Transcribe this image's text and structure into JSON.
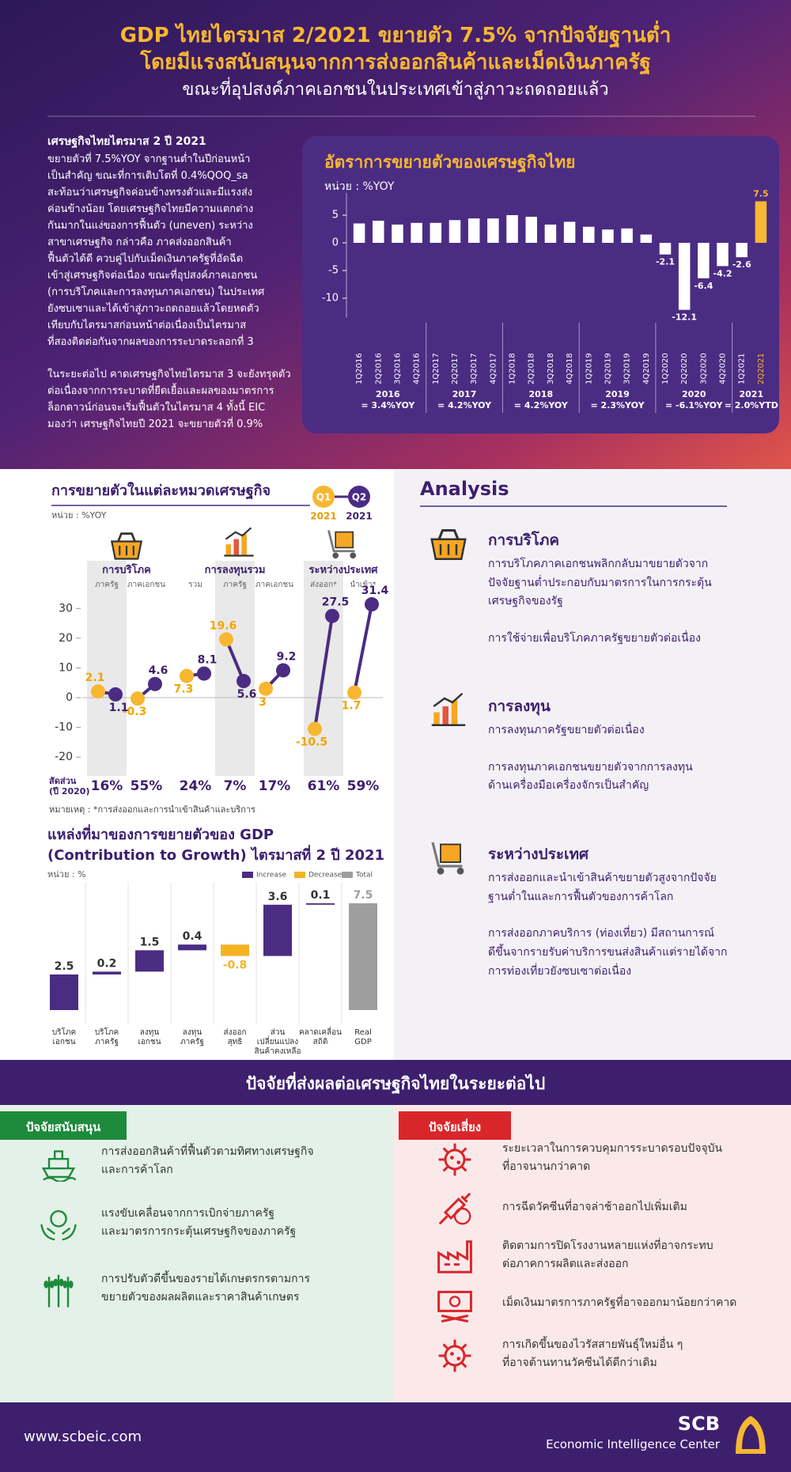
{
  "header": {
    "title": [
      "GDP ไทยไตรมาส 2/2021 ขยายตัว 7.5% จากปัจจัยฐานต่ำ",
      "โดยมีแรงสนับสนุนจากการส่งออกสินค้าและเม็ดเงินภาครัฐ"
    ],
    "subtitle": "ขณะที่อุปสงค์ภาคเอกชนในประเทศเข้าสู่ภาวะถดถอยแล้ว"
  },
  "intro": {
    "heading": "เศรษฐกิจไทยไตรมาส 2 ปี 2021",
    "paragraphs": [
      [
        "ขยายตัวที่ 7.5%YOY จากฐานต่ำในปีก่อนหน้า",
        "เป็นสำคัญ ขณะที่การเติบโตที่ 0.4%QOQ_sa",
        "สะท้อนว่าเศรษฐกิจค่อนข้างทรงตัวและมีแรงส่ง",
        "ค่อนข้างน้อย โดยเศรษฐกิจไทยมีความแตกต่าง",
        "กันมากในแง่ของการฟื้นตัว (uneven) ระหว่าง",
        "สาขาเศรษฐกิจ กล่าวคือ ภาคส่งออกสินค้า",
        "ฟื้นตัวได้ดี ควบคู่ไปกับเม็ดเงินภาครัฐที่อัดฉีด",
        "เข้าสู่เศรษฐกิจต่อเนื่อง ขณะที่อุปสงค์ภาคเอกชน",
        "(การบริโภคและการลงทุนภาคเอกชน) ในประเทศ",
        "ยังซบเซาและได้เข้าสู่ภาวะถดถอยแล้วโดยหดตัว",
        "เทียบกับไตรมาสก่อนหน้าต่อเนื่องเป็นไตรมาส",
        "ที่สองติดต่อกันจากผลของการระบาดระลอกที่ 3"
      ],
      [
        "ในระยะต่อไป คาดเศรษฐกิจไทยไตรมาส 3 จะยังทรุดตัว",
        "ต่อเนื่องจากการระบาดที่ยืดเยื้อและผลของมาตรการ",
        "ล็อกดาวน์ก่อนจะเริ่มฟื้นตัวในไตรมาส 4 ทั้งนี้ EIC",
        "มองว่า เศรษฐกิจไทยปี 2021 จะขยายตัวที่ 0.9%"
      ]
    ]
  },
  "chart_data": [
    {
      "type": "bar",
      "title": "อัตราการขยายตัวของเศรษฐกิจไทย",
      "unit": "หน่วย : %YOY",
      "categories": [
        "1Q2016",
        "2Q2016",
        "3Q2016",
        "4Q2016",
        "1Q2017",
        "2Q2017",
        "3Q2017",
        "4Q2017",
        "1Q2018",
        "2Q2018",
        "3Q2018",
        "4Q2018",
        "1Q2019",
        "2Q2019",
        "3Q2019",
        "4Q2019",
        "1Q2020",
        "2Q2020",
        "3Q2020",
        "4Q2020",
        "1Q2021",
        "2Q2021"
      ],
      "values": [
        3.5,
        4.0,
        3.3,
        3.6,
        3.6,
        4.1,
        4.4,
        4.4,
        5.0,
        4.7,
        3.3,
        3.8,
        2.9,
        2.4,
        2.6,
        1.5,
        -2.1,
        -12.1,
        -6.4,
        -4.2,
        -2.6,
        7.5
      ],
      "value_labels": [
        null,
        null,
        null,
        null,
        null,
        null,
        null,
        null,
        null,
        null,
        null,
        null,
        null,
        null,
        null,
        null,
        "-2.1",
        "-12.1",
        "-6.4",
        "-4.2",
        "-2.6",
        "7.5"
      ],
      "bar_colors": [
        "#ffffff",
        "#ffffff",
        "#ffffff",
        "#ffffff",
        "#ffffff",
        "#ffffff",
        "#ffffff",
        "#ffffff",
        "#ffffff",
        "#ffffff",
        "#ffffff",
        "#ffffff",
        "#ffffff",
        "#ffffff",
        "#ffffff",
        "#ffffff",
        "#ffffff",
        "#ffffff",
        "#ffffff",
        "#ffffff",
        "#ffffff",
        "#f7b731"
      ],
      "ylim": [
        -13.5,
        9
      ],
      "yticks": [
        5,
        0,
        -5,
        -10
      ],
      "groups": [
        {
          "year": "2016",
          "note": "= 3.4%YOY"
        },
        {
          "year": "2017",
          "note": "= 4.2%YOY"
        },
        {
          "year": "2018",
          "note": "= 4.2%YOY"
        },
        {
          "year": "2019",
          "note": "= 2.3%YOY"
        },
        {
          "year": "2020",
          "note": "= -6.1%YOY"
        },
        {
          "year": "2021",
          "note": "= 2.0%YTD"
        }
      ]
    },
    {
      "type": "dumbbell",
      "title": "การขยายตัวในแต่ละหมวดเศรษฐกิจ",
      "unit": "หน่วย : %YOY",
      "groups": [
        {
          "name": "การบริโภค",
          "categories": [
            "ภาครัฐ",
            "ภาคเอกชน"
          ]
        },
        {
          "name": "การลงทุนรวม",
          "categories": [
            "รวม",
            "ภาครัฐ",
            "ภาคเอกชน"
          ]
        },
        {
          "name": "ระหว่างประเทศ",
          "categories": [
            "ส่งออก*",
            "นำเข้า*"
          ]
        }
      ],
      "series": [
        {
          "name": "Q1",
          "sublabel": "2021",
          "color": "#f7b731",
          "values": [
            2.1,
            -0.3,
            7.3,
            19.6,
            3.0,
            -10.5,
            1.7
          ]
        },
        {
          "name": "Q2",
          "sublabel": "2021",
          "color": "#4b2c83",
          "values": [
            1.1,
            4.6,
            8.1,
            5.6,
            9.2,
            27.5,
            31.4
          ]
        }
      ],
      "ylim": [
        -25,
        37
      ],
      "yticks": [
        30,
        20,
        10,
        0,
        -10,
        -20
      ],
      "shares": {
        "label": [
          "สัดส่วน",
          "(ปี 2020)"
        ],
        "values": [
          16,
          55,
          24,
          7,
          17,
          61,
          59
        ],
        "value_labels": [
          "16%",
          "55%",
          "24%",
          "7%",
          "17%",
          "61%",
          "59%"
        ]
      },
      "note": "หมายเหตุ : *การส่งออกและการนำเข้าสินค้าและบริการ"
    },
    {
      "type": "waterfall",
      "title": [
        "แหล่งที่มาของการขยายตัวของ GDP",
        "(Contribution to Growth) ไตรมาสที่ 2 ปี 2021"
      ],
      "unit": "หน่วย : %",
      "categories": [
        [
          "บริโภค",
          "เอกชน"
        ],
        [
          "บริโภค",
          "ภาครัฐ"
        ],
        [
          "ลงทุน",
          "เอกชน"
        ],
        [
          "ลงทุน",
          "ภาครัฐ"
        ],
        [
          "ส่งออก",
          "สุทธิ"
        ],
        [
          "ส่วน",
          "เปลี่ยนแปลง",
          "สินค้าคงเหลือ"
        ],
        [
          "คลาดเคลื่อน",
          "สถิติ"
        ],
        [
          "Real",
          "GDP"
        ]
      ],
      "values": [
        2.5,
        0.2,
        1.5,
        0.4,
        -0.8,
        3.6,
        0.1,
        7.5
      ],
      "measures": [
        "relative",
        "relative",
        "relative",
        "relative",
        "relative",
        "relative",
        "relative",
        "total"
      ],
      "ylim": [
        0,
        9
      ],
      "legend": [
        {
          "name": "Increase",
          "color": "#4b2c83"
        },
        {
          "name": "Decrease",
          "color": "#f5b324"
        },
        {
          "name": "Total",
          "color": "#9e9e9e"
        }
      ]
    }
  ],
  "analysis": {
    "title": "Analysis",
    "items": [
      {
        "heading": "การบริโภค",
        "paragraphs": [
          [
            "การบริโภคภาคเอกชนพลิกกลับมาขยายตัวจาก",
            "ปัจจัยฐานต่ำประกอบกับมาตรการในการกระตุ้น",
            "เศรษฐกิจของรัฐ"
          ],
          [
            "การใช้จ่ายเพื่อบริโภคภาครัฐขยายตัวต่อเนื่อง"
          ]
        ]
      },
      {
        "heading": "การลงทุน",
        "paragraphs": [
          [
            "การลงทุนภาครัฐขยายตัวต่อเนื่อง"
          ],
          [
            "การลงทุนภาคเอกชนขยายตัวจากการลงทุน",
            "ด้านเครื่องมือเครื่องจักรเป็นสำคัญ"
          ]
        ]
      },
      {
        "heading": "ระหว่างประเทศ",
        "paragraphs": [
          [
            "การส่งออกและนำเข้าสินค้าขยายตัวสูงจากปัจจัย",
            "ฐานต่ำในและการฟื้นตัวของการค้าโลก"
          ],
          [
            "การส่งออกภาคบริการ (ท่องเที่ยว) มีสถานการณ์",
            "ดีขึ้นจากรายรับค่าบริการขนส่งสินค้าแต่รายได้จาก",
            "การท่องเที่ยวยังซบเซาต่อเนื่อง"
          ]
        ]
      }
    ]
  },
  "outlook": {
    "title": "ปัจจัยที่ส่งผลต่อเศรษฐกิจไทยในระยะต่อไป",
    "support": {
      "label": "ปัจจัยสนับสนุน",
      "items": [
        [
          "การส่งออกสินค้าที่ฟื้นตัวตามทิศทางเศรษฐกิจ",
          "และการค้าโลก"
        ],
        [
          "แรงขับเคลื่อนจากการเบิกจ่ายภาครัฐ",
          "และมาตรการกระตุ้นเศรษฐกิจของภาครัฐ"
        ],
        [
          "การปรับตัวดีขึ้นของรายได้เกษตรกรตามการ",
          "ขยายตัวของผลผลิตและราคาสินค้าเกษตร"
        ]
      ]
    },
    "risk": {
      "label": "ปัจจัยเสี่ยง",
      "items": [
        [
          "ระยะเวลาในการควบคุมการระบาดรอบปัจจุบัน",
          "ที่อาจนานกว่าคาด"
        ],
        [
          "การฉีดวัคซีนที่อาจล่าช้าออกไปเพิ่มเติม"
        ],
        [
          "ติดตามการปิดโรงงานหลายแห่งที่อาจกระทบ",
          "ต่อภาคการผลิตและส่งออก"
        ],
        [
          "เม็ดเงินมาตรการภาครัฐที่อาจออกมาน้อยกว่าคาด"
        ],
        [
          "การเกิดขึ้นของไวรัสสายพันธุ์ใหม่อื่น ๆ",
          "ที่อาจต้านทานวัคซีนได้ดีกว่าเดิม"
        ]
      ]
    }
  },
  "footer": {
    "url": "www.scbeic.com",
    "brand": "SCB",
    "unit": "Economic Intelligence Center"
  }
}
